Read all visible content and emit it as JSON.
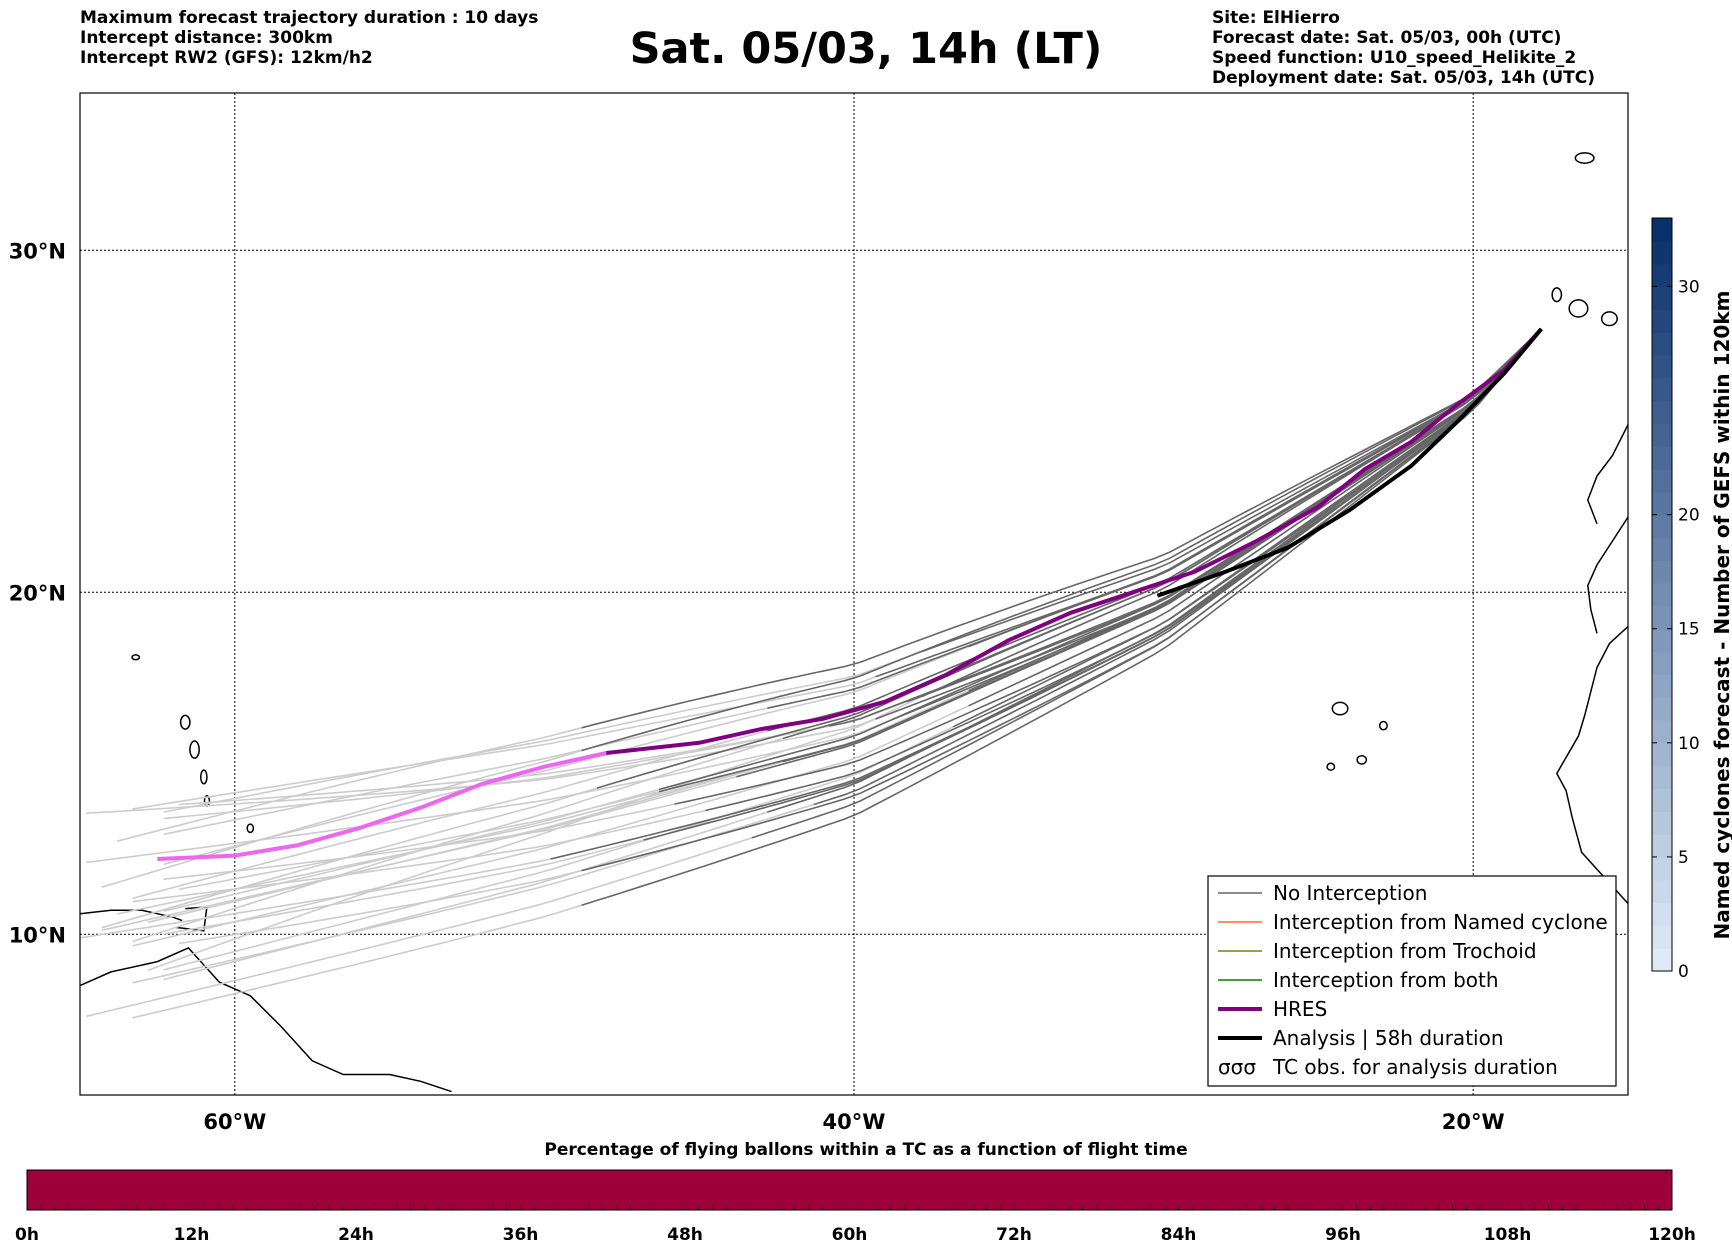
{
  "header_left": [
    "Maximum forecast trajectory duration : 10 days",
    "Intercept distance: 300km",
    "Intercept RW2 (GFS):  12km/h2"
  ],
  "title": "Sat. 05/03, 14h (LT)",
  "header_right": [
    "Site: ElHierro",
    "Forecast date: Sat. 05/03, 00h (UTC)",
    "Speed function: U10_speed_Helikite_2",
    "Deployment date: Sat. 05/03, 14h (UTC)"
  ],
  "colors": {
    "no_interception": "#666666",
    "ensemble_light": "#cccccc",
    "named_cyclone": "#ff6a1a",
    "trochoid": "#808000",
    "both": "#008000",
    "hres": "#800080",
    "hres_light": "#ee66ee",
    "analysis": "#000000",
    "percent_bar": "#9e003a"
  },
  "map": {
    "lon_range": [
      -65,
      -15
    ],
    "lat_range": [
      5.3,
      34.6
    ],
    "lon_ticks": [
      {
        "value": -60,
        "label": "60°W"
      },
      {
        "value": -40,
        "label": "40°W"
      },
      {
        "value": -20,
        "label": "20°W"
      }
    ],
    "lat_ticks": [
      {
        "value": 30,
        "label": "30°N"
      },
      {
        "value": 20,
        "label": "20°N"
      },
      {
        "value": 10,
        "label": "10°N"
      }
    ],
    "hres_track": [
      [
        -17.8,
        27.7
      ],
      [
        -19.0,
        26.5
      ],
      [
        -20.5,
        25.5
      ],
      [
        -22.0,
        24.4
      ],
      [
        -23.5,
        23.6
      ],
      [
        -25.0,
        22.5
      ],
      [
        -27.0,
        21.5
      ],
      [
        -29.0,
        20.6
      ],
      [
        -31.0,
        20.0
      ],
      [
        -33.0,
        19.4
      ],
      [
        -35.0,
        18.6
      ],
      [
        -37.0,
        17.6
      ],
      [
        -39.0,
        16.8
      ],
      [
        -41.0,
        16.3
      ],
      [
        -43.0,
        16.0
      ],
      [
        -45.0,
        15.6
      ],
      [
        -48.0,
        15.3
      ]
    ],
    "hres_track_late": [
      [
        -48.0,
        15.3
      ],
      [
        -50.0,
        14.9
      ],
      [
        -52.0,
        14.4
      ],
      [
        -54.0,
        13.7
      ],
      [
        -56.0,
        13.1
      ],
      [
        -58.0,
        12.6
      ],
      [
        -60.0,
        12.3
      ],
      [
        -62.5,
        12.2
      ]
    ],
    "analysis_track": [
      [
        -17.8,
        27.7
      ],
      [
        -19.0,
        26.4
      ],
      [
        -20.5,
        25.0
      ],
      [
        -22.0,
        23.7
      ],
      [
        -24.0,
        22.4
      ],
      [
        -26.0,
        21.3
      ],
      [
        -28.0,
        20.6
      ],
      [
        -30.2,
        19.9
      ]
    ]
  },
  "legend": [
    {
      "label": "No Interception",
      "kind": "thin",
      "color_key": "no_interception"
    },
    {
      "label": "Interception from Named cyclone",
      "kind": "thin",
      "color_key": "named_cyclone"
    },
    {
      "label": "Interception from Trochoid",
      "kind": "thin",
      "color_key": "trochoid"
    },
    {
      "label": "Interception from both",
      "kind": "thin",
      "color_key": "both"
    },
    {
      "label": "HRES",
      "kind": "thick",
      "color_key": "hres"
    },
    {
      "label": "Analysis | 58h duration",
      "kind": "thick",
      "color_key": "analysis"
    },
    {
      "label": "TC obs. for analysis duration",
      "kind": "symbol",
      "color_key": "analysis"
    }
  ],
  "right_colorbar": {
    "label": "Named cyclones forecast - Number of GEFS within 120km",
    "min": 0,
    "max": 33,
    "ticks": [
      0,
      5,
      10,
      15,
      20,
      30
    ]
  },
  "bottom_colorbar": {
    "title": "Percentage of flying ballons within a TC as a function of flight time",
    "ticks": [
      "0h",
      "12h",
      "24h",
      "36h",
      "48h",
      "60h",
      "72h",
      "84h",
      "96h",
      "108h",
      "120h"
    ]
  }
}
